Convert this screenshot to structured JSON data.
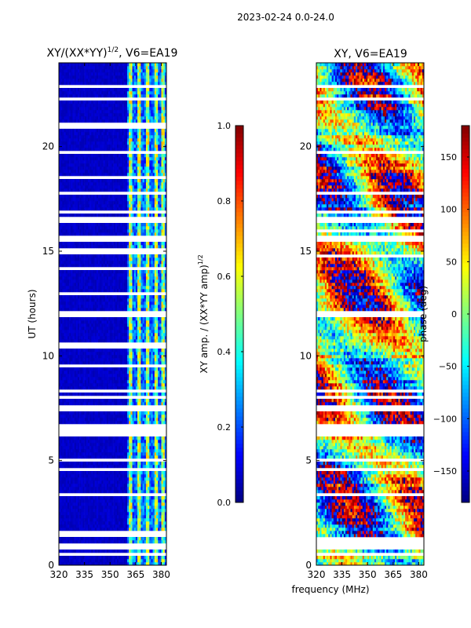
{
  "figure": {
    "suptitle": "2023-02-24 0.0-24.0",
    "shared_xlabel": "frequency (MHz)"
  },
  "chart_data": [
    {
      "type": "heatmap",
      "title": "XY/(XX*YY)",
      "title_exponent": "1/2",
      "title_suffix": ", V6=EA19",
      "xlabel": "",
      "ylabel": "UT (hours)",
      "xlim": [
        320,
        383
      ],
      "ylim": [
        0,
        24
      ],
      "xticks": [
        "320",
        "335",
        "350",
        "365",
        "380"
      ],
      "xtick_values": [
        320,
        335,
        350,
        365,
        380
      ],
      "yticks": [
        "0",
        "5",
        "10",
        "15",
        "20"
      ],
      "ytick_values": [
        0,
        5,
        10,
        15,
        20
      ],
      "colorbar": {
        "label": "XY amp. / (XX*YY amp)",
        "label_exponent": "1/2",
        "range": [
          0.0,
          1.0
        ],
        "ticks": [
          "0.0",
          "0.2",
          "0.4",
          "0.6",
          "0.8",
          "1.0"
        ],
        "tick_values": [
          0.0,
          0.2,
          0.4,
          0.6,
          0.8,
          1.0
        ]
      },
      "colormap": "jet",
      "value_range": [
        0.0,
        1.0
      ],
      "low_value_region_mhz": [
        320,
        360
      ],
      "low_value": 0.05,
      "high_value_band_mhz": [
        360,
        383
      ],
      "bright_channels_mhz": [
        362,
        367,
        372,
        377,
        381
      ],
      "flagged_rows_ut": [
        0.5,
        0.9,
        1.5,
        3.4,
        4.6,
        5.0,
        6.3,
        6.6,
        7.5,
        8.0,
        8.3,
        9.5,
        10.5,
        12.0,
        13.0,
        14.2,
        15.0,
        15.6,
        16.5,
        16.9,
        17.8,
        18.5,
        19.7,
        21.0,
        22.3,
        22.9
      ]
    },
    {
      "type": "heatmap",
      "title": "XY, V6=EA19",
      "xlabel": "",
      "ylabel": "",
      "xlim": [
        320,
        383
      ],
      "ylim": [
        0,
        24
      ],
      "xticks": [
        "320",
        "335",
        "350",
        "365",
        "380"
      ],
      "xtick_values": [
        320,
        335,
        350,
        365,
        380
      ],
      "yticks": [
        "0",
        "5",
        "10",
        "15",
        "20"
      ],
      "ytick_values": [
        0,
        5,
        10,
        15,
        20
      ],
      "colorbar": {
        "label": "phase (deg)",
        "range": [
          -180,
          180
        ],
        "ticks": [
          "−150",
          "−100",
          "−50",
          "0",
          "50",
          "100",
          "150"
        ],
        "tick_values": [
          -150,
          -100,
          -50,
          0,
          50,
          100,
          150
        ]
      },
      "colormap": "jet",
      "value_range": [
        -180,
        180
      ],
      "flagged_rows_ut": [
        0.5,
        0.9,
        1.2,
        3.4,
        4.6,
        5.0,
        6.3,
        6.6,
        7.5,
        8.0,
        8.3,
        12.0,
        14.8,
        15.6,
        16.0,
        16.5,
        16.9,
        17.8,
        19.7,
        22.3,
        22.9
      ]
    }
  ]
}
